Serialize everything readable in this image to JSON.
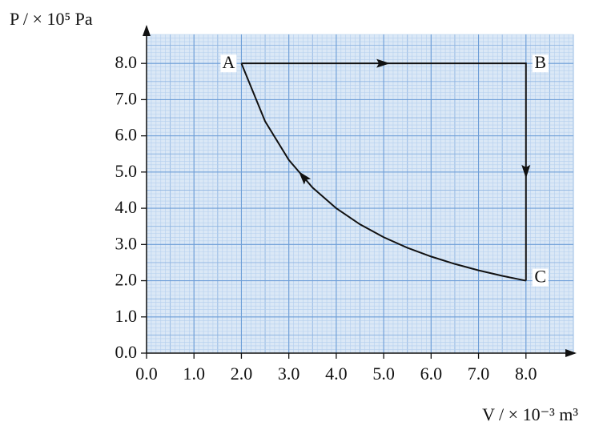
{
  "chart_data": {
    "type": "line",
    "xlabel": "V / × 10⁻³ m³",
    "ylabel": "P / × 10⁵ Pa",
    "xlim": [
      0,
      9
    ],
    "ylim": [
      0,
      8.8
    ],
    "xticks": [
      {
        "value": 0,
        "label": "0.0"
      },
      {
        "value": 1,
        "label": "1.0"
      },
      {
        "value": 2,
        "label": "2.0"
      },
      {
        "value": 3,
        "label": "3.0"
      },
      {
        "value": 4,
        "label": "4.0"
      },
      {
        "value": 5,
        "label": "5.0"
      },
      {
        "value": 6,
        "label": "6.0"
      },
      {
        "value": 7,
        "label": "7.0"
      },
      {
        "value": 8,
        "label": "8.0"
      }
    ],
    "yticks": [
      {
        "value": 0,
        "label": "0.0"
      },
      {
        "value": 1,
        "label": "1.0"
      },
      {
        "value": 2,
        "label": "2.0"
      },
      {
        "value": 3,
        "label": "3.0"
      },
      {
        "value": 4,
        "label": "4.0"
      },
      {
        "value": 5,
        "label": "5.0"
      },
      {
        "value": 6,
        "label": "6.0"
      },
      {
        "value": 7,
        "label": "7.0"
      },
      {
        "value": 8,
        "label": "8.0"
      }
    ],
    "grid": true,
    "series": [
      {
        "color": "#111111",
        "x": [
          2,
          8,
          8
        ],
        "values": [
          8,
          8,
          2
        ]
      },
      {
        "color": "#111111",
        "x": [
          8,
          7.5,
          7,
          6.5,
          6,
          5.5,
          5,
          4.5,
          4,
          3.5,
          3,
          2.5,
          2
        ],
        "values": [
          2,
          2.133,
          2.286,
          2.462,
          2.667,
          2.909,
          3.2,
          3.556,
          4,
          4.571,
          5.333,
          6.4,
          8
        ]
      }
    ],
    "annotations": [
      {
        "text": "A",
        "x": 2,
        "y": 8
      },
      {
        "text": "B",
        "x": 8,
        "y": 8
      },
      {
        "text": "C",
        "x": 8,
        "y": 2
      }
    ]
  }
}
